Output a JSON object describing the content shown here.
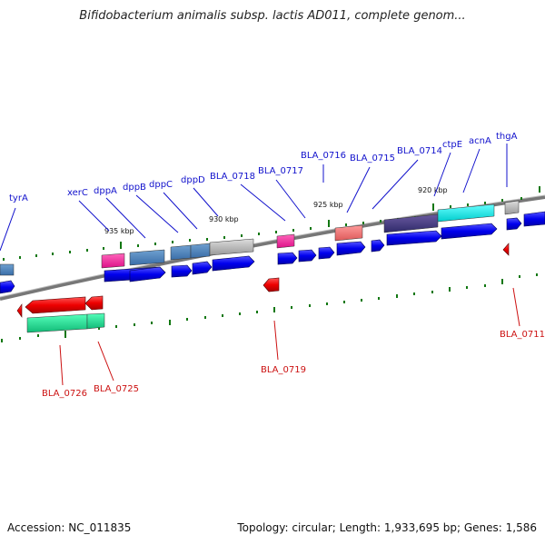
{
  "title": "Bifidobacterium animalis subsp. lactis AD011, complete genom...",
  "footer": {
    "accession": "Accession: NC_011835",
    "summary": "Topology: circular; Length: 1,933,695 bp; Genes: 1,586"
  },
  "scale_labels": [
    "935 kbp",
    "930 kbp",
    "925 kbp",
    "920 kbp"
  ],
  "colors": {
    "forward_cds": "#0000ee",
    "reverse_cds": "#ee0000",
    "backbone": "#777777",
    "tick": "#117711",
    "label_forward": "#1111cc",
    "label_reverse": "#cc1111"
  },
  "forward_labels": [
    "tyrA",
    "xerC",
    "dppA",
    "dppB",
    "dppC",
    "dppD",
    "BLA_0718",
    "BLA_0717",
    "BLA_0716",
    "BLA_0715",
    "BLA_0714",
    "ctpE",
    "acnA",
    "thgA"
  ],
  "reverse_labels": [
    "BLA_0726",
    "BLA_0725",
    "BLA_0719",
    "BLA_0711"
  ]
}
